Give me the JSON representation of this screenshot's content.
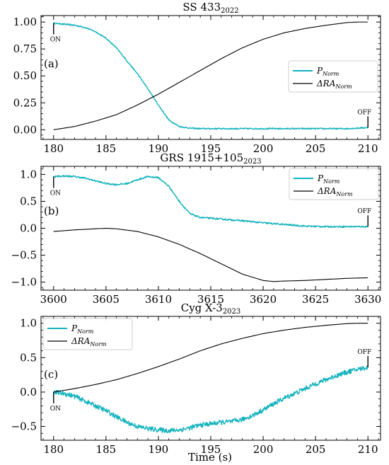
{
  "figure": {
    "xlabel": "Time (s)",
    "colors": {
      "p_norm": "#12b2bd",
      "dra_norm": "#000000"
    }
  },
  "chart_data": [
    {
      "type": "line",
      "title": "SS 433",
      "title_sub": "2022",
      "panel_label": "(a)",
      "xlim": [
        178.8,
        211.2
      ],
      "ylim": [
        -0.09,
        1.06
      ],
      "xticks": [
        180,
        185,
        190,
        195,
        200,
        205,
        210
      ],
      "yticks": [
        0.0,
        0.25,
        0.5,
        0.75,
        1.0
      ],
      "ytick_labels": [
        "0.00",
        "0.25",
        "0.50",
        "0.75",
        "1.00"
      ],
      "legend": {
        "position": "center-right",
        "entries": [
          {
            "series": 0,
            "label": "P",
            "sub": "Norm"
          },
          {
            "series": 1,
            "label": "ΔRA",
            "sub": "Norm"
          }
        ]
      },
      "annotations": [
        {
          "text": "ON",
          "x": 180,
          "anchor": "start"
        },
        {
          "text": "OFF",
          "x": 210,
          "anchor": "end"
        }
      ],
      "series": [
        {
          "name": "P_Norm",
          "noise": 0.006,
          "x": [
            180,
            181,
            182,
            183,
            184,
            185,
            186,
            187,
            188,
            189,
            190,
            191,
            192,
            193,
            194,
            196,
            198,
            200,
            202,
            204,
            206,
            208,
            210
          ],
          "y": [
            0.99,
            0.98,
            0.97,
            0.95,
            0.91,
            0.85,
            0.76,
            0.64,
            0.52,
            0.38,
            0.23,
            0.09,
            0.03,
            0.015,
            0.01,
            0.01,
            0.01,
            0.01,
            0.01,
            0.01,
            0.01,
            0.01,
            0.02
          ]
        },
        {
          "name": "ΔRA_Norm",
          "noise": 0,
          "x": [
            180,
            182,
            184,
            186,
            188,
            190,
            192,
            194,
            196,
            198,
            200,
            202,
            204,
            206,
            208,
            209,
            210
          ],
          "y": [
            0.0,
            0.03,
            0.08,
            0.14,
            0.23,
            0.33,
            0.44,
            0.55,
            0.66,
            0.76,
            0.84,
            0.9,
            0.94,
            0.97,
            0.995,
            1.0,
            1.0
          ]
        }
      ]
    },
    {
      "type": "line",
      "title": "GRS 1915+105",
      "title_sub": "2023",
      "panel_label": "(b)",
      "xlim": [
        3598.8,
        3631.2
      ],
      "ylim": [
        -1.15,
        1.15
      ],
      "xticks": [
        3600,
        3605,
        3610,
        3615,
        3620,
        3625,
        3630
      ],
      "yticks": [
        -1.0,
        -0.5,
        0.0,
        0.5,
        1.0
      ],
      "ytick_labels": [
        "−1.0",
        "−0.5",
        "0.0",
        "0.5",
        "1.0"
      ],
      "legend": {
        "position": "top-right",
        "entries": [
          {
            "series": 0,
            "label": "P",
            "sub": "Norm"
          },
          {
            "series": 1,
            "label": "ΔRA",
            "sub": "Norm"
          }
        ]
      },
      "annotations": [
        {
          "text": "ON",
          "x": 3600,
          "anchor": "start"
        },
        {
          "text": "OFF",
          "x": 3630,
          "anchor": "end"
        }
      ],
      "series": [
        {
          "name": "P_Norm",
          "noise": 0.015,
          "x": [
            3600,
            3601,
            3602,
            3603,
            3604,
            3605,
            3606,
            3607,
            3608,
            3609,
            3610,
            3611,
            3612,
            3613,
            3614,
            3616,
            3618,
            3620,
            3622,
            3624,
            3626,
            3628,
            3630
          ],
          "y": [
            0.96,
            0.97,
            0.96,
            0.93,
            0.88,
            0.83,
            0.81,
            0.83,
            0.9,
            0.96,
            0.94,
            0.78,
            0.5,
            0.27,
            0.2,
            0.17,
            0.14,
            0.1,
            0.07,
            0.04,
            0.03,
            0.03,
            0.03
          ]
        },
        {
          "name": "ΔRA_Norm",
          "noise": 0,
          "x": [
            3600,
            3602,
            3604,
            3605,
            3606,
            3608,
            3610,
            3612,
            3614,
            3616,
            3618,
            3620,
            3621,
            3622,
            3624,
            3626,
            3628,
            3630
          ],
          "y": [
            -0.06,
            -0.03,
            -0.01,
            0.0,
            -0.01,
            -0.06,
            -0.16,
            -0.3,
            -0.47,
            -0.66,
            -0.85,
            -0.97,
            -0.99,
            -0.98,
            -0.97,
            -0.95,
            -0.93,
            -0.92
          ]
        }
      ]
    },
    {
      "type": "line",
      "title": "Cyg X-3",
      "title_sub": "2023",
      "panel_label": "(c)",
      "xlim": [
        178.8,
        211.2
      ],
      "ylim": [
        -0.7,
        1.1
      ],
      "xticks": [
        180,
        185,
        190,
        195,
        200,
        205,
        210
      ],
      "yticks": [
        -0.5,
        0.0,
        0.5,
        1.0
      ],
      "ytick_labels": [
        "−0.5",
        "0.0",
        "0.5",
        "1.0"
      ],
      "legend": {
        "position": "top-left",
        "entries": [
          {
            "series": 0,
            "label": "P",
            "sub": "Norm"
          },
          {
            "series": 1,
            "label": "ΔRA",
            "sub": "Norm"
          }
        ]
      },
      "annotations": [
        {
          "text": "ON",
          "x": 180,
          "anchor": "start"
        },
        {
          "text": "OFF",
          "x": 210,
          "anchor": "end"
        }
      ],
      "series": [
        {
          "name": "P_Norm",
          "noise": 0.035,
          "x": [
            180,
            181,
            182,
            183,
            184,
            185,
            186,
            187,
            188,
            189,
            190,
            191,
            192,
            193,
            194,
            195,
            196,
            197,
            198,
            199,
            200,
            201,
            202,
            203,
            204,
            205,
            206,
            207,
            208,
            209,
            210
          ],
          "y": [
            0.0,
            -0.02,
            -0.06,
            -0.13,
            -0.2,
            -0.27,
            -0.36,
            -0.44,
            -0.5,
            -0.53,
            -0.55,
            -0.56,
            -0.55,
            -0.52,
            -0.48,
            -0.46,
            -0.44,
            -0.43,
            -0.4,
            -0.34,
            -0.26,
            -0.17,
            -0.09,
            -0.02,
            0.05,
            0.12,
            0.18,
            0.24,
            0.29,
            0.33,
            0.36
          ]
        },
        {
          "name": "ΔRA_Norm",
          "noise": 0,
          "x": [
            180,
            182,
            184,
            186,
            188,
            190,
            192,
            194,
            196,
            198,
            200,
            202,
            204,
            206,
            208,
            209,
            210
          ],
          "y": [
            0.0,
            0.05,
            0.11,
            0.18,
            0.27,
            0.37,
            0.48,
            0.6,
            0.7,
            0.78,
            0.85,
            0.9,
            0.94,
            0.97,
            0.995,
            1.0,
            1.0
          ]
        }
      ]
    }
  ]
}
